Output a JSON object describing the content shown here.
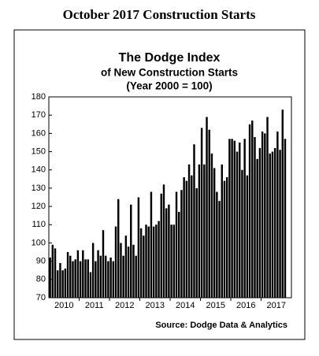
{
  "page_heading": "October 2017 Construction Starts",
  "chart_data": {
    "type": "bar",
    "title": "The Dodge Index",
    "subtitle": "of New Construction Starts",
    "note": "(Year 2000 = 100)",
    "source": "Source:  Dodge Data & Analytics",
    "color": "#000000",
    "ylim": [
      70,
      180
    ],
    "yticks": [
      70,
      80,
      90,
      100,
      110,
      120,
      130,
      140,
      150,
      160,
      170,
      180
    ],
    "grid": false,
    "categories": [
      null,
      null,
      null,
      null,
      null,
      "2010",
      null,
      null,
      null,
      null,
      null,
      null,
      null,
      null,
      null,
      null,
      null,
      "2011",
      null,
      null,
      null,
      null,
      null,
      null,
      null,
      null,
      null,
      null,
      null,
      "2012",
      null,
      null,
      null,
      null,
      null,
      null,
      null,
      null,
      null,
      null,
      null,
      "2013",
      null,
      null,
      null,
      null,
      null,
      null,
      null,
      null,
      null,
      null,
      null,
      "2014",
      null,
      null,
      null,
      null,
      null,
      null,
      null,
      null,
      null,
      null,
      null,
      "2015",
      null,
      null,
      null,
      null,
      null,
      null,
      null,
      null,
      null,
      null,
      null,
      "2016",
      null,
      null,
      null,
      null,
      null,
      null,
      null,
      null,
      null,
      null,
      null,
      "2017",
      null,
      null,
      null,
      null
    ],
    "values": [
      92,
      99,
      97,
      85,
      89,
      85,
      86,
      95,
      93,
      90,
      91,
      96,
      90,
      96,
      91,
      91,
      84,
      100,
      90,
      96,
      93,
      107,
      93,
      90,
      92,
      90,
      109,
      124,
      100,
      93,
      104,
      98,
      121,
      99,
      93,
      125,
      108,
      104,
      110,
      109,
      128,
      109,
      110,
      112,
      127,
      132,
      119,
      121,
      110,
      110,
      128,
      117,
      129,
      136,
      134,
      143,
      137,
      154,
      130,
      143,
      163,
      143,
      169,
      162,
      149,
      141,
      128,
      123,
      143,
      134,
      136,
      157,
      157,
      156,
      150,
      155,
      140,
      157,
      137,
      165,
      167,
      158,
      146,
      152,
      161,
      160,
      169,
      149,
      150,
      152,
      161,
      151,
      173,
      157
    ]
  }
}
